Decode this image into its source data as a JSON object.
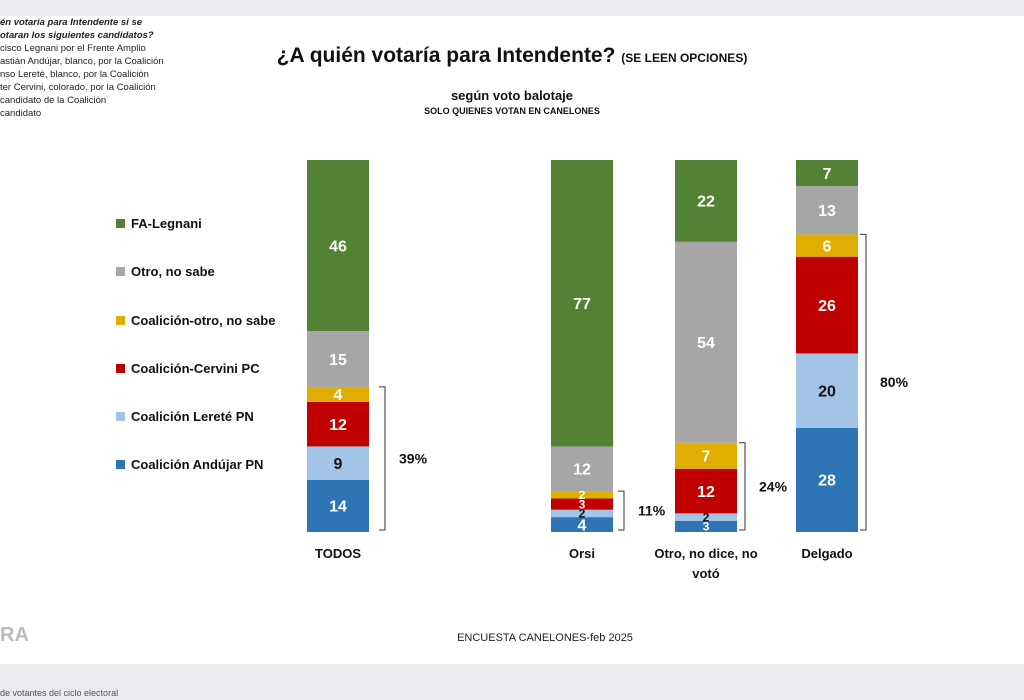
{
  "question": {
    "lines": [
      "én votaría para Intendente si se",
      "otaran los siguientes candidatos?",
      "cisco Legnani por el Frente Amplio",
      "astián Andújar, blanco, por la Coalición",
      "nso Lereté, blanco, por la Coalición",
      "ter Cervini, colorado, por la Coalición",
      "candidato de la Coalición",
      "candidato"
    ]
  },
  "title": "¿A quién votaría para Intendente?",
  "title_note": "(SE LEEN OPCIONES)",
  "subtitle": "según voto balotaje",
  "note": "SOLO QUIENES VOTAN EN CANELONES",
  "footer": "ENCUESTA CANELONES-feb 2025",
  "logo": "RA",
  "bottom_text": "de votantes del ciclo electoral",
  "colors": {
    "fa_legnani": "#548235",
    "otro_no_sabe": "#a6a6a6",
    "coal_otro": "#e0ad00",
    "coal_cervini": "#c00000",
    "coal_lerete": "#a2c4e6",
    "coal_andujar": "#2e75b6"
  },
  "chart_data": {
    "type": "bar",
    "stacked": true,
    "categories": [
      "TODOS",
      "Orsi",
      "Otro, no dice, no votó",
      "Delgado"
    ],
    "series": [
      {
        "name": "Coalición Andújar PN",
        "color_key": "coal_andujar",
        "values": [
          14,
          4,
          3,
          28
        ]
      },
      {
        "name": "Coalición Lereté PN",
        "color_key": "coal_lerete",
        "values": [
          9,
          2,
          2,
          20
        ]
      },
      {
        "name": "Coalición-Cervini PC",
        "color_key": "coal_cervini",
        "values": [
          12,
          3,
          12,
          26
        ]
      },
      {
        "name": "Coalición-otro, no sabe",
        "color_key": "coal_otro",
        "values": [
          4,
          2,
          7,
          6
        ]
      },
      {
        "name": "Otro, no sabe",
        "color_key": "otro_no_sabe",
        "values": [
          15,
          12,
          54,
          13
        ]
      },
      {
        "name": "FA-Legnani",
        "color_key": "fa_legnani",
        "values": [
          46,
          77,
          22,
          7
        ]
      }
    ],
    "coalition_totals": [
      "39%",
      "11%",
      "24%",
      "80%"
    ],
    "ylim": [
      0,
      100
    ],
    "legend_order": [
      "FA-Legnani",
      "Otro, no sabe",
      "Coalición-otro, no sabe",
      "Coalición-Cervini PC",
      "Coalición Lereté PN",
      "Coalición Andújar PN"
    ]
  }
}
